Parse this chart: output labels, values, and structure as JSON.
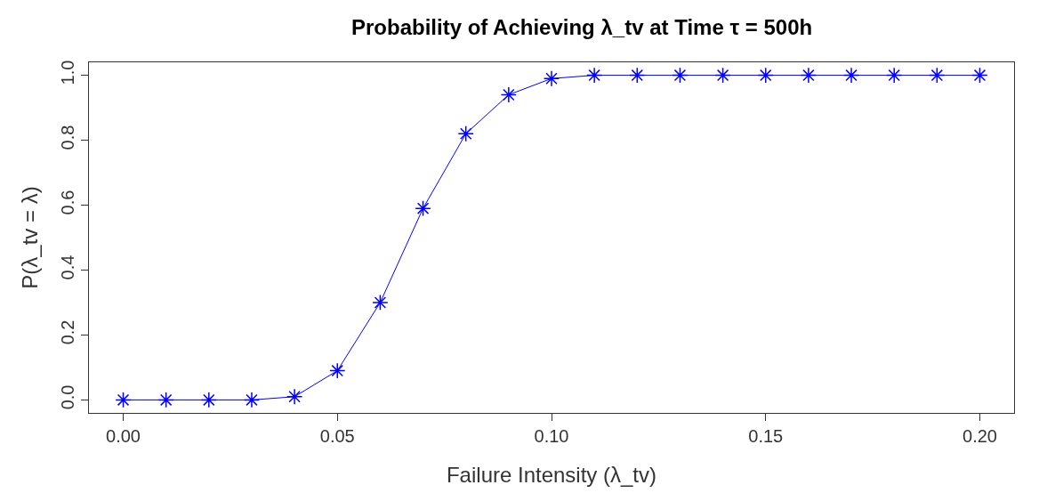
{
  "chart_data": {
    "type": "line",
    "title": "Probability of Achieving λ_tv at Time τ = 500h",
    "xlabel": "Failure Intensity (λ_tv)",
    "ylabel": "P(λ_tv = λ)",
    "x": [
      0.0,
      0.01,
      0.02,
      0.03,
      0.04,
      0.05,
      0.06,
      0.07,
      0.08,
      0.09,
      0.1,
      0.11,
      0.12,
      0.13,
      0.14,
      0.15,
      0.16,
      0.17,
      0.18,
      0.19,
      0.2
    ],
    "series": [
      {
        "color": "#0000ff",
        "values": [
          0.0,
          0.0,
          0.0,
          0.0,
          0.01,
          0.09,
          0.3,
          0.59,
          0.82,
          0.94,
          0.99,
          1.0,
          1.0,
          1.0,
          1.0,
          1.0,
          1.0,
          1.0,
          1.0,
          1.0,
          1.0
        ]
      }
    ],
    "xlim": [
      -0.008,
      0.208
    ],
    "ylim": [
      -0.04,
      1.04
    ],
    "xticks": [
      {
        "value": 0,
        "label": "0.00"
      },
      {
        "value": 0.05,
        "label": "0.05"
      },
      {
        "value": 0.1,
        "label": "0.10"
      },
      {
        "value": 0.15,
        "label": "0.15"
      },
      {
        "value": 0.2,
        "label": "0.20"
      }
    ],
    "yticks": [
      {
        "value": 0,
        "label": "0.0"
      },
      {
        "value": 0.2,
        "label": "0.2"
      },
      {
        "value": 0.4,
        "label": "0.4"
      },
      {
        "value": 0.6,
        "label": "0.6"
      },
      {
        "value": 0.8,
        "label": "0.8"
      },
      {
        "value": 1.0,
        "label": "1.0"
      }
    ],
    "marker": "cross",
    "line_style": "solid"
  }
}
